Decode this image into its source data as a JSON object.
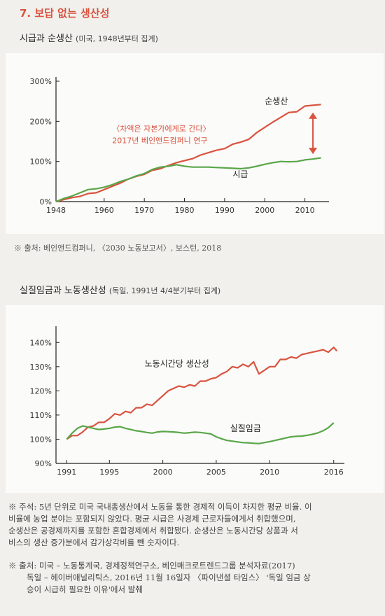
{
  "page": {
    "section_title": "7. 보답 없는 생산성",
    "chart1_title": "시급과 순생산",
    "chart1_subtitle": "(미국, 1948년부터 집계)",
    "chart1_source": "※ 출처: 베인앤드컴퍼니, 〈2030 노동보고서〉, 보스턴, 2018",
    "chart2_title": "실질임금과 노동생산성",
    "chart2_subtitle": "(독일, 1991년 4/4분기부터 집계)",
    "note_line1": "※ 주석: 5년 단위로 미국 국내총생산에서 노동을 통한 경제적 이득이 차지한 평균 비율. 이",
    "note_line2": "비율에 농업 분야는 포함되지 않았다. 평균 시급은 사경제 근로자들에게서 취합했으며,",
    "note_line3": "순생산은 공경제까지를 포함한 혼합경제에서 취합됐다. 순생산은 노동시간당 상품과 서",
    "note_line4": "비스의 생산 증가분에서 감가상각비를 뺀 숫자이다.",
    "src_line1": "※ 출처: 미국 – 노동통계국, 경제정책연구소, 베인매크로트렌드그룹 분석자료(2017)",
    "src_line2": "독일 – 헤이버애널리틱스, 2016년 11월 16일자 〈파이낸셜 타임스〉 '독일 임금 상",
    "src_line3": "승이 시급히 필요한 이유'에서 발췌"
  },
  "colors": {
    "red": "#d9533f",
    "green": "#5aa64a",
    "arrow": "#d9533f",
    "axis": "#222222"
  },
  "chart_data": [
    {
      "type": "line",
      "ylim": [
        0,
        300
      ],
      "xlim": [
        1948,
        2016
      ],
      "y_ticks": [
        0,
        100,
        200,
        300
      ],
      "y_tick_labels": [
        "0%",
        "100%",
        "200%",
        "300%"
      ],
      "x_ticks": [
        1948,
        1960,
        1970,
        1980,
        1990,
        2000,
        2010
      ],
      "x_tick_labels": [
        "1948",
        "1960",
        "1970",
        "1980",
        "1990",
        "2000",
        "2010"
      ],
      "annotation_line1": "〈차액은 자본가에게로 간다〉",
      "annotation_line2": "2017년 베인앤드컴퍼니 연구",
      "gap_arrow": {
        "x": 2012,
        "from": 108,
        "to": 236
      },
      "series": [
        {
          "name": "순생산",
          "color": "#d9533f",
          "x": [
            1948,
            1950,
            1952,
            1954,
            1956,
            1958,
            1960,
            1962,
            1964,
            1966,
            1968,
            1970,
            1972,
            1974,
            1976,
            1978,
            1980,
            1982,
            1984,
            1986,
            1988,
            1990,
            1992,
            1994,
            1996,
            1998,
            2000,
            2002,
            2004,
            2006,
            2008,
            2010,
            2012,
            2014
          ],
          "values": [
            0,
            5,
            10,
            13,
            20,
            22,
            30,
            38,
            46,
            56,
            63,
            68,
            78,
            82,
            90,
            97,
            102,
            107,
            116,
            122,
            128,
            132,
            143,
            148,
            155,
            172,
            185,
            198,
            210,
            222,
            224,
            238,
            240,
            242
          ]
        },
        {
          "name": "시급",
          "color": "#5aa64a",
          "x": [
            1948,
            1950,
            1952,
            1954,
            1956,
            1958,
            1960,
            1962,
            1964,
            1966,
            1968,
            1970,
            1972,
            1974,
            1976,
            1978,
            1980,
            1982,
            1984,
            1986,
            1988,
            1990,
            1992,
            1994,
            1996,
            1998,
            2000,
            2002,
            2004,
            2006,
            2008,
            2010,
            2012,
            2014
          ],
          "values": [
            0,
            8,
            14,
            22,
            30,
            32,
            36,
            42,
            50,
            56,
            64,
            70,
            80,
            86,
            88,
            92,
            88,
            86,
            86,
            86,
            85,
            84,
            83,
            82,
            84,
            88,
            93,
            97,
            100,
            99,
            100,
            104,
            106,
            109
          ]
        }
      ]
    },
    {
      "type": "line",
      "ylim": [
        90,
        145
      ],
      "xlim": [
        1990,
        2017
      ],
      "y_ticks": [
        90,
        100,
        110,
        120,
        130,
        140
      ],
      "y_tick_labels": [
        "90%",
        "100%",
        "110%",
        "120%",
        "130%",
        "140%"
      ],
      "x_ticks": [
        1991,
        1995,
        2000,
        2005,
        2010,
        2016
      ],
      "x_tick_labels": [
        "1991",
        "1995",
        "2000",
        "2005",
        "2010",
        "2016"
      ],
      "series": [
        {
          "name": "노동시간당 생산성",
          "color": "#d9533f",
          "x": [
            1991,
            1991.5,
            1992,
            1992.5,
            1993,
            1993.5,
            1994,
            1994.5,
            1995,
            1995.5,
            1996,
            1996.5,
            1997,
            1997.5,
            1998,
            1998.5,
            1999,
            1999.5,
            2000,
            2000.5,
            2001,
            2001.5,
            2002,
            2002.5,
            2003,
            2003.5,
            2004,
            2004.5,
            2005,
            2005.5,
            2006,
            2006.5,
            2007,
            2007.5,
            2008,
            2008.5,
            2009,
            2009.5,
            2010,
            2010.5,
            2011,
            2011.5,
            2012,
            2012.5,
            2013,
            2013.5,
            2014,
            2014.5,
            2015,
            2015.5,
            2016,
            2016.3
          ],
          "values": [
            100,
            101.5,
            101.5,
            103,
            105,
            105.5,
            107,
            107,
            108.5,
            110.5,
            110,
            111.5,
            111,
            113,
            113,
            114.5,
            114,
            116,
            118,
            120,
            121,
            122,
            121.5,
            122.5,
            122,
            124,
            124,
            125,
            125.5,
            127,
            128,
            130,
            129.5,
            131,
            130,
            132,
            127,
            128.5,
            130,
            130,
            133,
            133,
            134,
            133.5,
            135,
            135.5,
            136,
            136.5,
            137,
            136,
            138,
            136.5
          ]
        },
        {
          "name": "실질임금",
          "color": "#5aa64a",
          "x": [
            1991,
            1991.5,
            1992,
            1992.5,
            1993,
            1993.5,
            1994,
            1994.5,
            1995,
            1995.5,
            1996,
            1996.5,
            1997,
            1997.5,
            1998,
            1998.5,
            1999,
            1999.5,
            2000,
            2000.5,
            2001,
            2001.5,
            2002,
            2002.5,
            2003,
            2003.5,
            2004,
            2004.5,
            2005,
            2005.5,
            2006,
            2006.5,
            2007,
            2007.5,
            2008,
            2008.5,
            2009,
            2009.5,
            2010,
            2010.5,
            2011,
            2011.5,
            2012,
            2012.5,
            2013,
            2013.5,
            2014,
            2014.5,
            2015,
            2015.5,
            2016
          ],
          "values": [
            100,
            102.5,
            104.5,
            105.5,
            105,
            104.5,
            104,
            104.2,
            104.5,
            105,
            105.2,
            104.5,
            104,
            103.5,
            103.2,
            102.8,
            102.5,
            103,
            103.2,
            103.1,
            103,
            102.8,
            102.5,
            102.7,
            102.9,
            102.8,
            102.5,
            102.2,
            101,
            100.2,
            99.5,
            99.2,
            98.9,
            98.6,
            98.5,
            98.3,
            98.2,
            98.6,
            99,
            99.5,
            100,
            100.5,
            101,
            101.2,
            101.3,
            101.6,
            102,
            102.6,
            103.5,
            104.8,
            106.8
          ]
        }
      ]
    }
  ],
  "series_labels": {
    "chart1_red": "순생산",
    "chart1_green": "시급",
    "chart2_red": "노동시간당 생산성",
    "chart2_green": "실질임금"
  }
}
